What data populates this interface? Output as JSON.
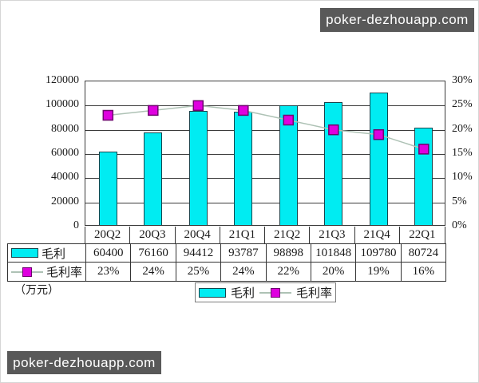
{
  "watermarks": {
    "top": "poker-dezhouapp.com",
    "bottom": "poker-dezhouapp.com"
  },
  "unit_label": "（万元）",
  "colors": {
    "bar_fill": "#00ecf2",
    "bar_border": "#17454d",
    "marker_fill": "#df00df",
    "marker_border": "#6e026e",
    "line": "#aec2b5",
    "grid": "#3a3a3a",
    "table_border": "#333333",
    "watermark_bg": "#595959",
    "watermark_text": "#ffffff",
    "text": "#1a1a1a"
  },
  "chart_data": {
    "type": "bar",
    "title": "",
    "categories": [
      "20Q2",
      "20Q3",
      "20Q4",
      "21Q1",
      "21Q2",
      "21Q3",
      "21Q4",
      "22Q1"
    ],
    "series": [
      {
        "name": "毛利",
        "type": "bar",
        "axis": "left",
        "values": [
          60400,
          76160,
          94412,
          93787,
          98898,
          101848,
          109780,
          80724
        ],
        "labels": [
          "60400",
          "76160",
          "94412",
          "93787",
          "98898",
          "101848",
          "109780",
          "80724"
        ]
      },
      {
        "name": "毛利率",
        "type": "line",
        "axis": "right",
        "values": [
          23,
          24,
          25,
          24,
          22,
          20,
          19,
          16
        ],
        "labels": [
          "23%",
          "24%",
          "25%",
          "24%",
          "22%",
          "20%",
          "19%",
          "16%"
        ]
      }
    ],
    "left_axis": {
      "min": 0,
      "max": 120000,
      "step": 20000,
      "ticks": [
        "0",
        "20000",
        "40000",
        "60000",
        "80000",
        "100000",
        "120000"
      ]
    },
    "right_axis": {
      "min": 0,
      "max": 30,
      "step": 5,
      "ticks": [
        "0%",
        "5%",
        "10%",
        "15%",
        "20%",
        "25%",
        "30%"
      ]
    },
    "grid": "horizontal",
    "legend_position": "bottom",
    "data_table_shown": true,
    "unit": "万元"
  }
}
